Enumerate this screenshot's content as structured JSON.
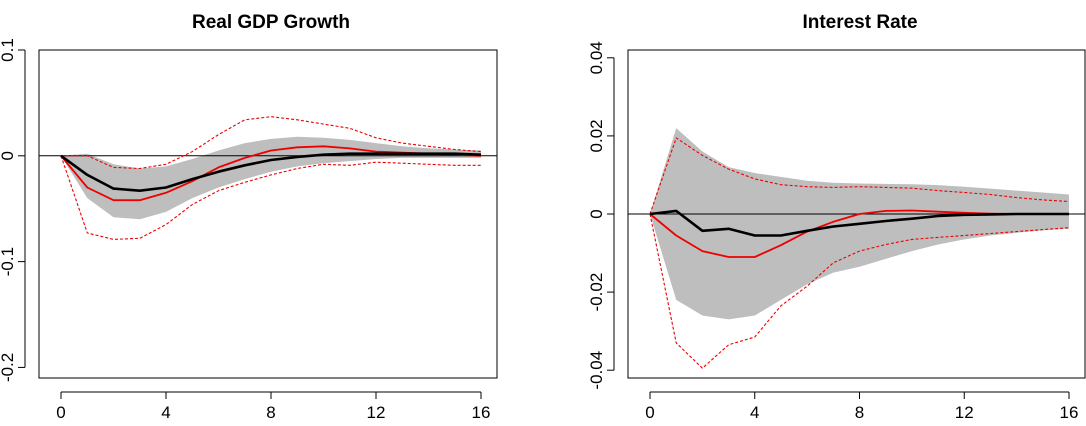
{
  "colors": {
    "band": "#bebebe",
    "mean": "#000000",
    "alt": "#ee0000",
    "zero": "#000000"
  },
  "chart_data": [
    {
      "type": "line",
      "title": "Real GDP Growth",
      "xlim": [
        0,
        16
      ],
      "ylim": [
        -0.21,
        0.1
      ],
      "x_ticks": [
        0,
        4,
        8,
        12,
        16
      ],
      "x_tick_labels": [
        "0",
        "4",
        "8",
        "12",
        "16"
      ],
      "y_ticks": [
        -0.2,
        -0.1,
        0,
        0.1
      ],
      "y_tick_labels": [
        "-0.2",
        "-0.1",
        "0",
        "0.1"
      ],
      "zero_line": true,
      "x": [
        0,
        1,
        2,
        3,
        4,
        5,
        6,
        7,
        8,
        9,
        10,
        11,
        12,
        13,
        14,
        15,
        16
      ],
      "band": {
        "lower": [
          0,
          -0.04,
          -0.058,
          -0.06,
          -0.053,
          -0.04,
          -0.03,
          -0.022,
          -0.015,
          -0.01,
          -0.007,
          -0.005,
          -0.003,
          -0.002,
          -0.002,
          -0.002,
          -0.002
        ],
        "upper": [
          0,
          0.002,
          -0.008,
          -0.012,
          -0.01,
          -0.003,
          0.005,
          0.012,
          0.016,
          0.018,
          0.017,
          0.015,
          0.012,
          0.009,
          0.007,
          0.006,
          0.005
        ]
      },
      "series": [
        {
          "style": "black-solid",
          "values": [
            0,
            -0.018,
            -0.031,
            -0.033,
            -0.03,
            -0.022,
            -0.015,
            -0.009,
            -0.004,
            -0.001,
            0.001,
            0.002,
            0.002,
            0.002,
            0.002,
            0.002,
            0.001
          ]
        },
        {
          "style": "red-solid",
          "values": [
            0,
            -0.03,
            -0.042,
            -0.042,
            -0.035,
            -0.024,
            -0.011,
            -0.002,
            0.005,
            0.008,
            0.009,
            0.007,
            0.004,
            0.003,
            0.002,
            0.001,
            0
          ]
        },
        {
          "style": "red-dashed",
          "values": [
            0,
            -0.073,
            -0.079,
            -0.078,
            -0.065,
            -0.046,
            -0.033,
            -0.025,
            -0.018,
            -0.012,
            -0.008,
            -0.009,
            -0.006,
            -0.007,
            -0.008,
            -0.009,
            -0.009
          ]
        },
        {
          "style": "red-dashed",
          "values": [
            0,
            0,
            -0.011,
            -0.012,
            -0.008,
            0.004,
            0.02,
            0.034,
            0.037,
            0.034,
            0.03,
            0.026,
            0.017,
            0.012,
            0.009,
            0.006,
            0.004
          ]
        }
      ]
    },
    {
      "type": "line",
      "title": "Interest Rate",
      "xlim": [
        0,
        16
      ],
      "ylim": [
        -0.042,
        0.042
      ],
      "x_ticks": [
        0,
        4,
        8,
        12,
        16
      ],
      "x_tick_labels": [
        "0",
        "4",
        "8",
        "12",
        "16"
      ],
      "y_ticks": [
        -0.04,
        -0.02,
        0,
        0.02,
        0.04
      ],
      "y_tick_labels": [
        "-0.04",
        "-0.02",
        "0",
        "0.02",
        "0.04"
      ],
      "zero_line": true,
      "x": [
        0,
        1,
        2,
        3,
        4,
        5,
        6,
        7,
        8,
        9,
        10,
        11,
        12,
        13,
        14,
        15,
        16
      ],
      "band": {
        "lower": [
          0,
          -0.022,
          -0.026,
          -0.027,
          -0.026,
          -0.022,
          -0.018,
          -0.015,
          -0.0135,
          -0.0115,
          -0.0095,
          -0.0078,
          -0.0065,
          -0.0055,
          -0.0048,
          -0.0042,
          -0.0038
        ],
        "upper": [
          0,
          0.022,
          0.016,
          0.012,
          0.0105,
          0.0095,
          0.0085,
          0.008,
          0.0078,
          0.0077,
          0.0076,
          0.0074,
          0.007,
          0.0065,
          0.006,
          0.0055,
          0.005
        ]
      },
      "series": [
        {
          "style": "black-solid",
          "values": [
            0,
            0.0008,
            -0.0043,
            -0.0038,
            -0.0055,
            -0.0055,
            -0.0043,
            -0.0032,
            -0.0025,
            -0.0018,
            -0.0012,
            -0.0005,
            -0.0002,
            -0.0001,
            0,
            0,
            0
          ]
        },
        {
          "style": "red-solid",
          "values": [
            0,
            -0.0055,
            -0.0095,
            -0.011,
            -0.011,
            -0.008,
            -0.0045,
            -0.002,
            0,
            0.0008,
            0.0009,
            0.0006,
            0.0003,
            0.0001,
            0,
            0,
            0
          ]
        },
        {
          "style": "red-dashed",
          "values": [
            0,
            -0.033,
            -0.0395,
            -0.0335,
            -0.0315,
            -0.0235,
            -0.0185,
            -0.0125,
            -0.0095,
            -0.0078,
            -0.0065,
            -0.006,
            -0.0055,
            -0.005,
            -0.0045,
            -0.004,
            -0.0035
          ]
        },
        {
          "style": "red-dashed",
          "values": [
            0,
            0.0195,
            0.015,
            0.0115,
            0.009,
            0.0075,
            0.007,
            0.0068,
            0.007,
            0.0068,
            0.0066,
            0.006,
            0.0055,
            0.005,
            0.0042,
            0.0036,
            0.0032
          ]
        }
      ]
    }
  ]
}
